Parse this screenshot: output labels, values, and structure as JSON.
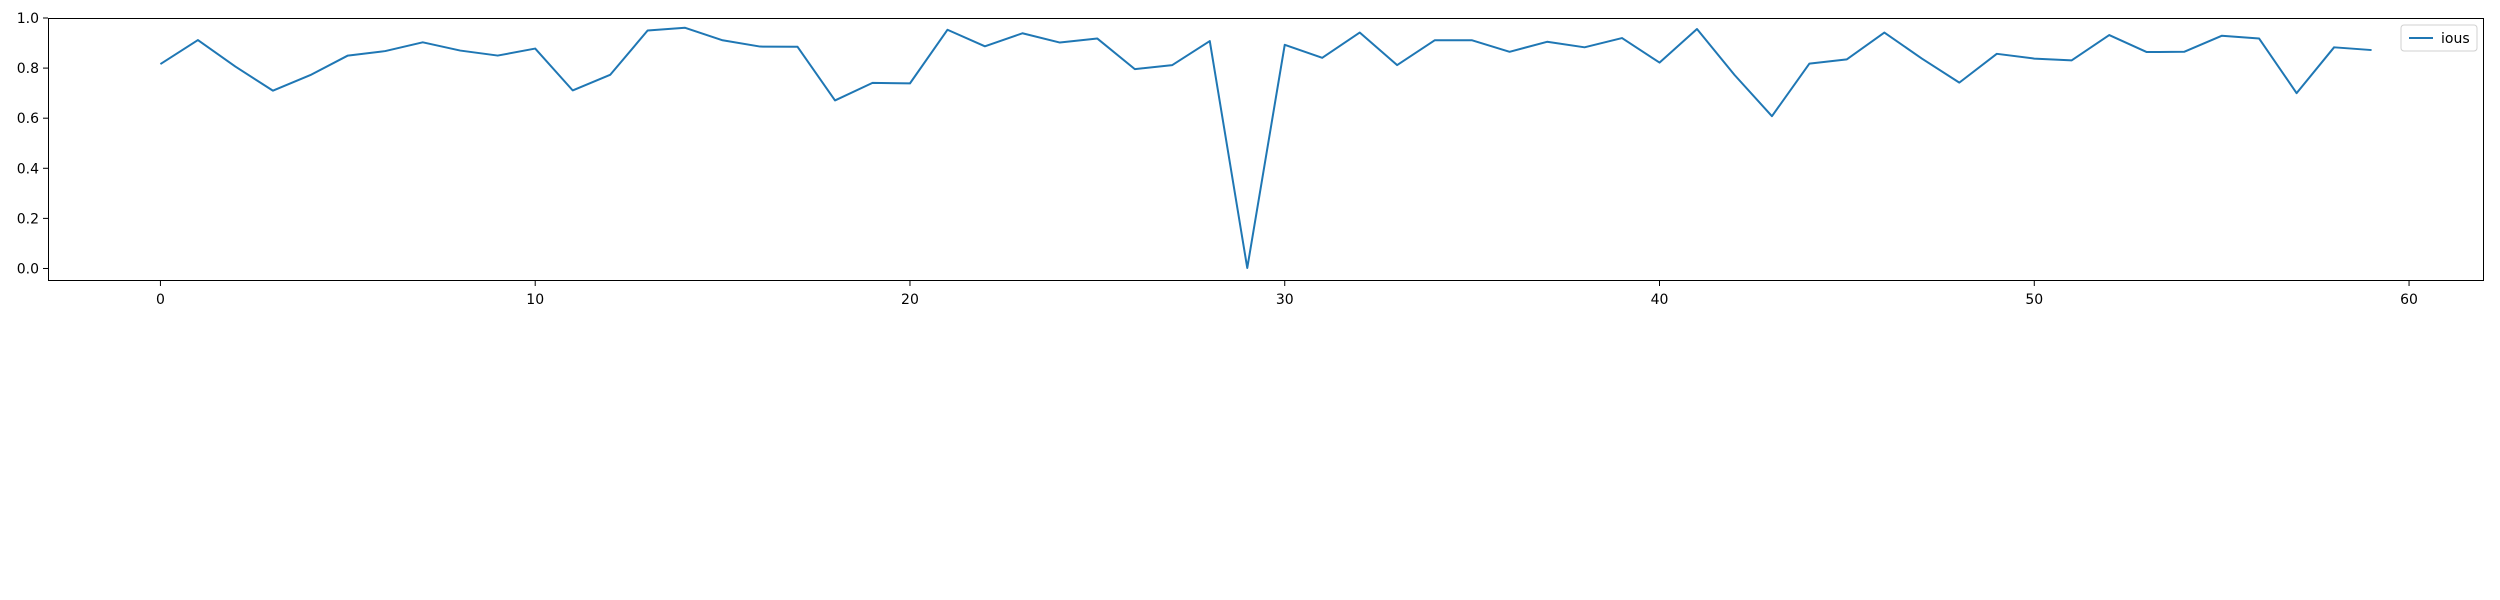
{
  "chart_data": {
    "type": "line",
    "title": "",
    "xlabel": "",
    "ylabel": "",
    "xlim": [
      -3,
      62
    ],
    "ylim": [
      -0.05,
      1.0
    ],
    "grid": false,
    "legend_position": "top-right",
    "x_ticks": [
      0,
      10,
      20,
      30,
      40,
      50,
      60
    ],
    "x_tick_labels": [
      "0",
      "10",
      "20",
      "30",
      "40",
      "50",
      "60"
    ],
    "y_ticks": [
      0.0,
      0.2,
      0.4,
      0.6,
      0.8,
      1.0
    ],
    "y_tick_labels": [
      "0.0",
      "0.2",
      "0.4",
      "0.6",
      "0.8",
      "1.0"
    ],
    "series": [
      {
        "name": "ious",
        "color": "#1f77b4",
        "x": [
          0,
          1,
          2,
          3,
          4,
          5,
          6,
          7,
          8,
          9,
          10,
          11,
          12,
          13,
          14,
          15,
          16,
          17,
          18,
          19,
          20,
          21,
          22,
          23,
          24,
          25,
          26,
          27,
          28,
          29,
          30,
          31,
          32,
          33,
          34,
          35,
          36,
          37,
          38,
          39,
          40,
          41,
          42,
          43,
          44,
          45,
          46,
          47,
          48,
          49,
          50,
          51,
          52,
          53,
          54,
          55,
          56,
          57,
          58,
          59
        ],
        "values": [
          0.816,
          0.912,
          0.806,
          0.71,
          0.772,
          0.85,
          0.868,
          0.903,
          0.87,
          0.85,
          0.878,
          0.711,
          0.773,
          0.95,
          0.961,
          0.911,
          0.886,
          0.885,
          0.671,
          0.741,
          0.739,
          0.953,
          0.887,
          0.939,
          0.902,
          0.918,
          0.796,
          0.812,
          0.908,
          0.002,
          0.893,
          0.841,
          0.942,
          0.812,
          0.911,
          0.911,
          0.865,
          0.905,
          0.883,
          0.92,
          0.822,
          0.956,
          0.773,
          0.608,
          0.818,
          0.835,
          0.942,
          0.838,
          0.742,
          0.857,
          0.838,
          0.831,
          0.932,
          0.864,
          0.865,
          0.929,
          0.918,
          0.7,
          0.883,
          0.872
        ]
      }
    ]
  }
}
